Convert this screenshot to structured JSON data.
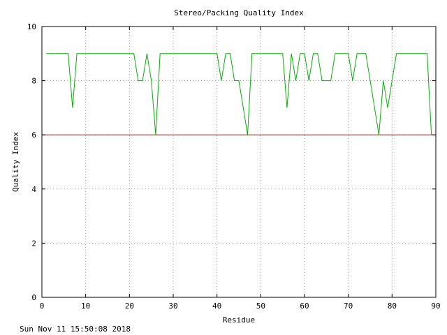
{
  "footer": {
    "timestamp": "Sun Nov 11 15:50:08 2018"
  },
  "chart_data": {
    "type": "line",
    "title": "Stereo/Packing Quality Index",
    "xlabel": "Residue",
    "ylabel": "Quality Index",
    "xlim": [
      0,
      90
    ],
    "ylim": [
      0,
      10
    ],
    "xticks": [
      0,
      10,
      20,
      30,
      40,
      50,
      60,
      70,
      80,
      90
    ],
    "yticks": [
      0,
      2,
      4,
      6,
      8,
      10
    ],
    "grid": true,
    "legend": "none",
    "series": [
      {
        "color": "#00b000",
        "x": [
          1,
          2,
          3,
          4,
          5,
          6,
          7,
          8,
          9,
          10,
          11,
          12,
          13,
          14,
          15,
          16,
          17,
          18,
          19,
          20,
          21,
          22,
          23,
          24,
          25,
          26,
          27,
          28,
          29,
          30,
          31,
          32,
          33,
          34,
          35,
          36,
          37,
          38,
          39,
          40,
          41,
          42,
          43,
          44,
          45,
          46,
          47,
          48,
          49,
          50,
          51,
          52,
          53,
          54,
          55,
          56,
          57,
          58,
          59,
          60,
          61,
          62,
          63,
          64,
          65,
          66,
          67,
          68,
          69,
          70,
          71,
          72,
          73,
          74,
          75,
          76,
          77,
          78,
          79,
          80,
          81,
          82,
          83,
          84,
          85,
          86,
          87,
          88,
          89
        ],
        "y": [
          9,
          9,
          9,
          9,
          9,
          9,
          7,
          9,
          9,
          9,
          9,
          9,
          9,
          9,
          9,
          9,
          9,
          9,
          9,
          9,
          9,
          8,
          8,
          9,
          8,
          6,
          9,
          9,
          9,
          9,
          9,
          9,
          9,
          9,
          9,
          9,
          9,
          9,
          9,
          9,
          8,
          9,
          9,
          8,
          8,
          7,
          6,
          9,
          9,
          9,
          9,
          9,
          9,
          9,
          9,
          7,
          9,
          8,
          9,
          9,
          8,
          9,
          9,
          8,
          8,
          8,
          9,
          9,
          9,
          9,
          8,
          9,
          9,
          9,
          8,
          7,
          6,
          8,
          7,
          8,
          9,
          9,
          9,
          9,
          9,
          9,
          9,
          9,
          6
        ]
      },
      {
        "color": "#cc0000",
        "x": [
          0,
          90
        ],
        "y": [
          6,
          6
        ]
      }
    ]
  }
}
